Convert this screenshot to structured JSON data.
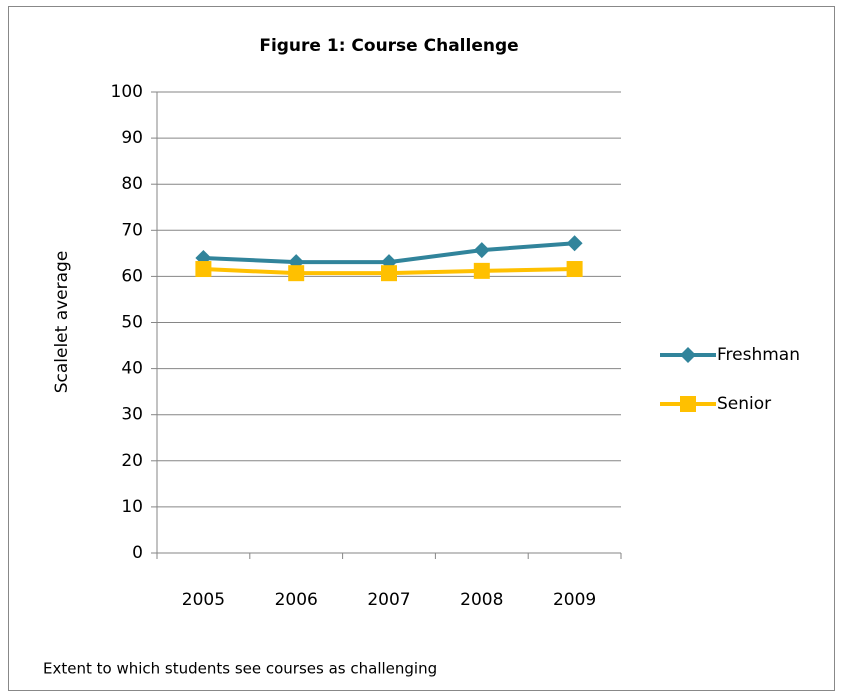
{
  "chart_data": {
    "type": "line",
    "title": "Figure 1: Course Challenge",
    "y_label": "Scalelet average",
    "note": "Extent to which students see courses as challenging",
    "categories": [
      "2005",
      "2006",
      "2007",
      "2008",
      "2009"
    ],
    "series": [
      {
        "name": "Freshman",
        "color": "#31849b",
        "marker": "diamond",
        "values": [
          64.0,
          63.1,
          63.1,
          65.7,
          67.2
        ]
      },
      {
        "name": "Senior",
        "color": "#ffc000",
        "marker": "square",
        "values": [
          61.6,
          60.7,
          60.7,
          61.2,
          61.6
        ]
      }
    ],
    "ylim": [
      0,
      100
    ],
    "yticks": [
      0,
      10,
      20,
      30,
      40,
      50,
      60,
      70,
      80,
      90,
      100
    ],
    "grid": true,
    "legend": "right"
  }
}
